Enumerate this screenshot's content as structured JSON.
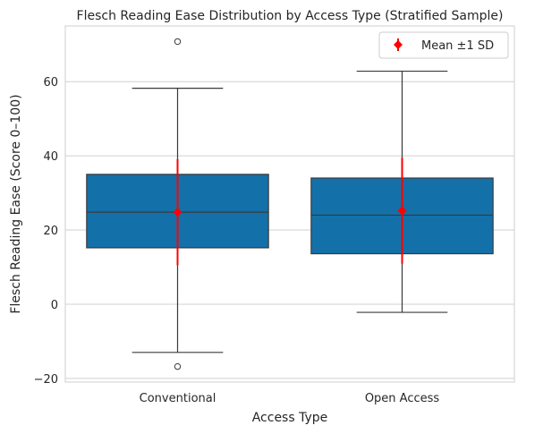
{
  "chart_data": {
    "type": "box",
    "title": "Flesch Reading Ease Distribution by Access Type (Stratified Sample)",
    "xlabel": "Access Type",
    "ylabel": "Flesch Reading Ease (Score 0–100)",
    "ylim": [
      -21,
      75
    ],
    "yticks": [
      -20,
      0,
      20,
      40,
      60
    ],
    "ytick_labels": [
      "−20",
      "0",
      "20",
      "40",
      "60"
    ],
    "categories": [
      "Conventional",
      "Open Access"
    ],
    "grid": "horizontal",
    "legend_position": "top-right",
    "legend_label": "Mean ±1 SD",
    "colors": {
      "box_fill": "#1470a8",
      "box_edge": "#3a3a3a",
      "mean_marker": "#ff0000",
      "grid": "#d0d0d0",
      "frame": "#cfcfcf"
    },
    "boxes": [
      {
        "category": "Conventional",
        "whisker_low": -13,
        "q1": 15.2,
        "median": 24.8,
        "q3": 35,
        "whisker_high": 58.2,
        "outliers": [
          70.8,
          -16.8
        ],
        "mean": 24.8,
        "sd": 14.3
      },
      {
        "category": "Open Access",
        "whisker_low": -2.2,
        "q1": 13.6,
        "median": 24,
        "q3": 34,
        "whisker_high": 62.8,
        "outliers": [],
        "mean": 25.2,
        "sd": 14.3
      }
    ]
  }
}
